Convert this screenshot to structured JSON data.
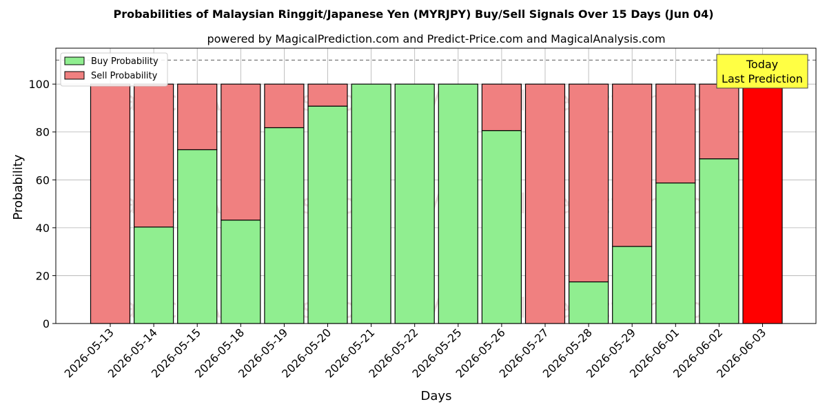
{
  "chart_data": {
    "type": "bar",
    "stacked": true,
    "title": "Probabilities of Malaysian Ringgit/Japanese Yen (MYRJPY) Buy/Sell Signals Over 15 Days (Jun 04)",
    "subtitle": "powered by MagicalPrediction.com and Predict-Price.com and MagicalAnalysis.com",
    "xlabel": "Days",
    "ylabel": "Probability",
    "ylim": [
      0,
      115
    ],
    "yticks": [
      0,
      20,
      40,
      60,
      80,
      100
    ],
    "grid": true,
    "legend_position": "top-left",
    "reference_line": 110,
    "categories": [
      "2026-05-13",
      "2026-05-14",
      "2026-05-15",
      "2026-05-18",
      "2026-05-19",
      "2026-05-20",
      "2026-05-21",
      "2026-05-22",
      "2026-05-25",
      "2026-05-26",
      "2026-05-27",
      "2026-05-28",
      "2026-05-29",
      "2026-06-01",
      "2026-06-02",
      "2026-06-03"
    ],
    "series": [
      {
        "name": "Buy Probability",
        "color": "#90ee90",
        "values": [
          0,
          40.3,
          72.6,
          43.2,
          81.8,
          90.8,
          100,
          100,
          100,
          80.6,
          0,
          17.4,
          32.2,
          58.7,
          68.8,
          0
        ]
      },
      {
        "name": "Sell Probability",
        "color": "#f08080",
        "values": [
          100,
          59.7,
          27.4,
          56.8,
          18.2,
          9.2,
          0,
          0,
          0,
          19.4,
          100,
          82.6,
          67.8,
          41.3,
          31.2,
          100
        ]
      }
    ],
    "highlight": {
      "index": 15,
      "color": "#ff0000"
    },
    "annotation": {
      "line1": "Today",
      "line2": "Last Prediction",
      "color": "#ffff44"
    },
    "watermarks": [
      "MagicalAnalysis.com",
      "MagicalPrediction.com"
    ]
  }
}
